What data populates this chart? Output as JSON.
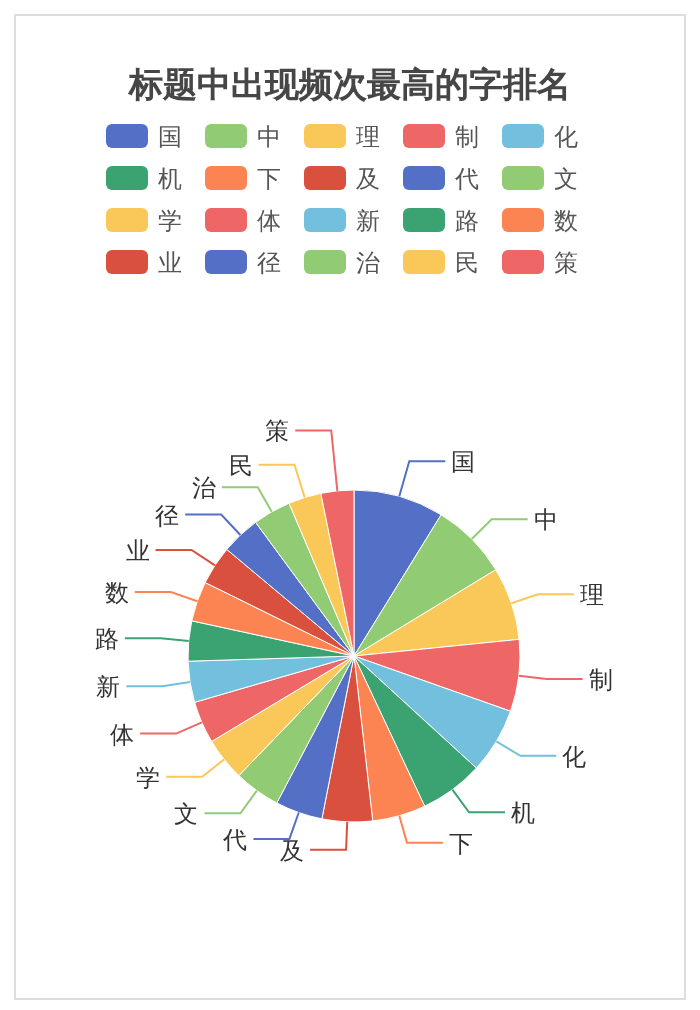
{
  "chart_data": {
    "type": "pie",
    "title": "标题中出现频次最高的字排名",
    "legend": "top",
    "categories": [
      "国",
      "中",
      "理",
      "制",
      "化",
      "机",
      "下",
      "及",
      "代",
      "文",
      "学",
      "体",
      "新",
      "路",
      "数",
      "业",
      "径",
      "治",
      "民",
      "策"
    ],
    "values": [
      8.8,
      7.5,
      7.1,
      7.0,
      6.4,
      6.2,
      5.2,
      4.9,
      4.6,
      4.5,
      4.2,
      4.1,
      4.0,
      3.9,
      3.9,
      3.8,
      3.8,
      3.7,
      3.2,
      3.2
    ],
    "colors": [
      "#5470c6",
      "#91cc75",
      "#fac858",
      "#ee6666",
      "#73c0de",
      "#3ba272",
      "#fc8452",
      "#d9503f",
      "#5470c6",
      "#91cc75",
      "#fac858",
      "#ee6666",
      "#73c0de",
      "#3ba272",
      "#fc8452",
      "#d9503f",
      "#5470c6",
      "#91cc75",
      "#fac858",
      "#ee6666"
    ]
  }
}
